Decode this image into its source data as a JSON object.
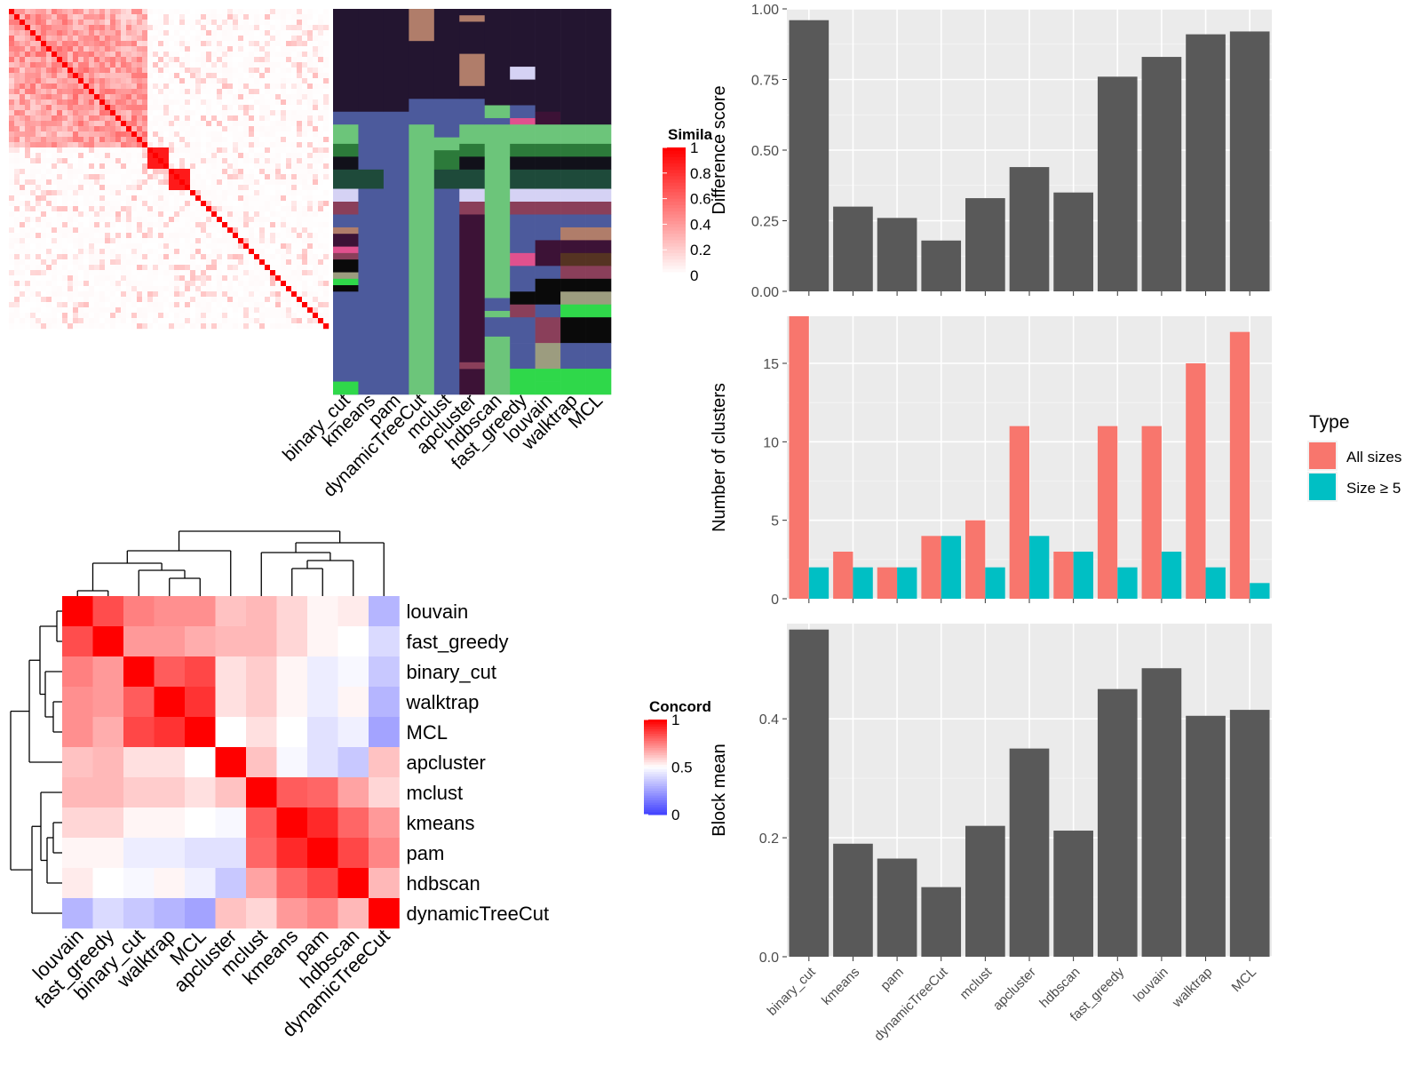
{
  "colors": {
    "panel_bg": "#EBEBEB",
    "bar": "#595959",
    "all_sizes": "#F8766D",
    "size_ge5": "#00BFC4",
    "heat_high": "#FF0000",
    "heat_mid": "#FFFFFF",
    "heat_low": "#0000FF"
  },
  "similarity_legend": {
    "title": "Simila",
    "ticks": [
      "1",
      "0.8",
      "0.6",
      "0.4",
      "0.2",
      "0"
    ]
  },
  "concordance_legend": {
    "title": "Concord",
    "ticks": [
      "1",
      "0.5",
      "0"
    ]
  },
  "method_grid_labels": [
    "binary_cut",
    "kmeans",
    "pam",
    "dynamicTreeCut",
    "mclust",
    "apcluster",
    "hdbscan",
    "fast_greedy",
    "louvain",
    "walktrap",
    "MCL"
  ],
  "concordance_labels": [
    "louvain",
    "fast_greedy",
    "binary_cut",
    "walktrap",
    "MCL",
    "apcluster",
    "mclust",
    "kmeans",
    "pam",
    "hdbscan",
    "dynamicTreeCut"
  ],
  "chart_data": [
    {
      "type": "heatmap",
      "title": "",
      "legend_title": "Simila",
      "description_value_range": [
        0,
        1
      ],
      "note": "term-by-term similarity matrix with strong diagonal; cell-level values not labeled"
    },
    {
      "type": "heatmap",
      "title": "",
      "xlabels": [
        "binary_cut",
        "kmeans",
        "pam",
        "dynamicTreeCut",
        "mclust",
        "apcluster",
        "hdbscan",
        "fast_greedy",
        "louvain",
        "walktrap",
        "MCL"
      ],
      "note": "categorical cluster-assignment grid, one column per method"
    },
    {
      "type": "heatmap",
      "legend_title": "Concord",
      "value_range": [
        0,
        1
      ],
      "rows": [
        "louvain",
        "fast_greedy",
        "binary_cut",
        "walktrap",
        "MCL",
        "apcluster",
        "mclust",
        "kmeans",
        "pam",
        "hdbscan",
        "dynamicTreeCut"
      ],
      "cols": [
        "louvain",
        "fast_greedy",
        "binary_cut",
        "walktrap",
        "MCL",
        "apcluster",
        "mclust",
        "kmeans",
        "pam",
        "hdbscan",
        "dynamicTreeCut"
      ],
      "values": [
        [
          1.0,
          0.85,
          0.75,
          0.72,
          0.72,
          0.62,
          0.64,
          0.58,
          0.52,
          0.54,
          0.3
        ],
        [
          0.85,
          1.0,
          0.7,
          0.7,
          0.66,
          0.64,
          0.64,
          0.58,
          0.52,
          0.5,
          0.4
        ],
        [
          0.75,
          0.7,
          1.0,
          0.82,
          0.86,
          0.56,
          0.6,
          0.52,
          0.45,
          0.48,
          0.35
        ],
        [
          0.72,
          0.7,
          0.82,
          1.0,
          0.9,
          0.56,
          0.6,
          0.52,
          0.45,
          0.52,
          0.3
        ],
        [
          0.72,
          0.66,
          0.86,
          0.9,
          1.0,
          0.5,
          0.56,
          0.5,
          0.42,
          0.46,
          0.25
        ],
        [
          0.62,
          0.64,
          0.56,
          0.56,
          0.5,
          1.0,
          0.62,
          0.48,
          0.42,
          0.35,
          0.62
        ],
        [
          0.64,
          0.64,
          0.6,
          0.6,
          0.56,
          0.62,
          1.0,
          0.82,
          0.8,
          0.68,
          0.58
        ],
        [
          0.58,
          0.58,
          0.52,
          0.52,
          0.5,
          0.48,
          0.82,
          1.0,
          0.92,
          0.8,
          0.7
        ],
        [
          0.52,
          0.52,
          0.45,
          0.45,
          0.42,
          0.42,
          0.8,
          0.92,
          1.0,
          0.86,
          0.74
        ],
        [
          0.54,
          0.5,
          0.48,
          0.52,
          0.46,
          0.35,
          0.68,
          0.8,
          0.86,
          1.0,
          0.64
        ],
        [
          0.3,
          0.4,
          0.35,
          0.3,
          0.25,
          0.62,
          0.58,
          0.7,
          0.74,
          0.64,
          1.0
        ]
      ]
    },
    {
      "type": "bar",
      "categories": [
        "binary_cut",
        "kmeans",
        "pam",
        "dynamicTreeCut",
        "mclust",
        "apcluster",
        "hdbscan",
        "fast_greedy",
        "louvain",
        "walktrap",
        "MCL"
      ],
      "values": [
        0.96,
        0.3,
        0.26,
        0.18,
        0.33,
        0.44,
        0.35,
        0.76,
        0.83,
        0.91,
        0.92
      ],
      "ylabel": "Difference score",
      "ylim": [
        0,
        1
      ],
      "yticks": [
        "0.00",
        "0.25",
        "0.50",
        "0.75",
        "1.00"
      ],
      "grid": true
    },
    {
      "type": "bar",
      "categories": [
        "binary_cut",
        "kmeans",
        "pam",
        "dynamicTreeCut",
        "mclust",
        "apcluster",
        "hdbscan",
        "fast_greedy",
        "louvain",
        "walktrap",
        "MCL"
      ],
      "series": [
        {
          "name": "All sizes",
          "values": [
            18,
            3,
            2,
            4,
            5,
            11,
            3,
            11,
            11,
            15,
            17
          ]
        },
        {
          "name": "Size ≥ 5",
          "values": [
            2,
            2,
            2,
            4,
            2,
            4,
            3,
            2,
            3,
            2,
            1
          ]
        }
      ],
      "ylabel": "Number of clusters",
      "ylim": [
        0,
        18
      ],
      "yticks": [
        "0",
        "5",
        "10",
        "15"
      ],
      "legend_title": "Type",
      "legend_position": "right",
      "grid": true
    },
    {
      "type": "bar",
      "categories": [
        "binary_cut",
        "kmeans",
        "pam",
        "dynamicTreeCut",
        "mclust",
        "apcluster",
        "hdbscan",
        "fast_greedy",
        "louvain",
        "walktrap",
        "MCL"
      ],
      "values": [
        0.55,
        0.19,
        0.165,
        0.117,
        0.22,
        0.35,
        0.212,
        0.45,
        0.485,
        0.405,
        0.415
      ],
      "ylabel": "Block mean",
      "ylim": [
        0,
        0.56
      ],
      "yticks": [
        "0.0",
        "0.2",
        "0.4"
      ],
      "grid": true
    }
  ]
}
